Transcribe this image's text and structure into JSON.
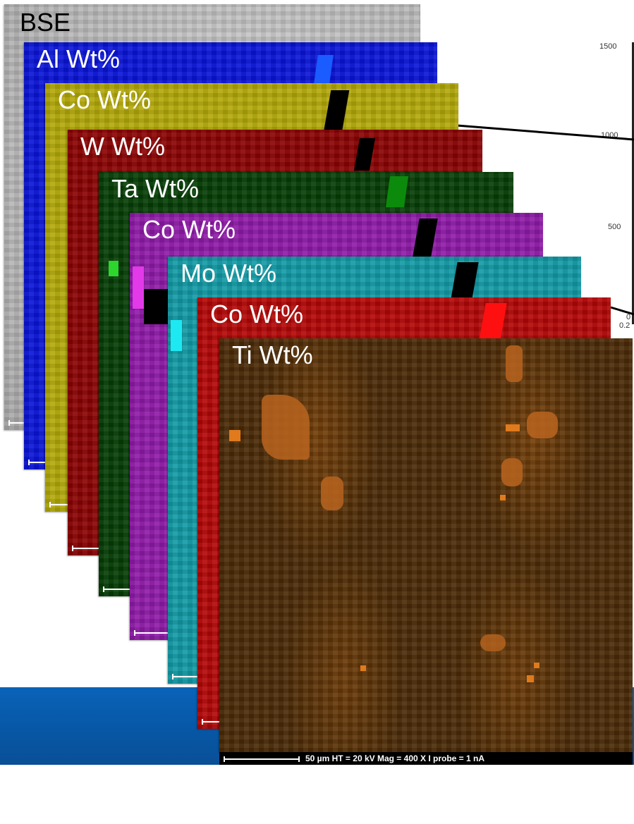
{
  "slide": {
    "background_chart_ticks": [
      "1500",
      "1000",
      "500",
      "0",
      "0.2"
    ],
    "maps": [
      {
        "label": "BSE",
        "color": "#bdbdbd"
      },
      {
        "label": "Al Wt%",
        "color": "#0a14d8"
      },
      {
        "label": "Co Wt%",
        "color": "#b3a90a"
      },
      {
        "label": "W Wt%",
        "color": "#8a0202"
      },
      {
        "label": "Ta Wt%",
        "color": "#053d05"
      },
      {
        "label": "Co Wt%",
        "color": "#8f1aa8"
      },
      {
        "label": "Mo Wt%",
        "color": "#129aa6"
      },
      {
        "label": "Co Wt%",
        "color": "#b30606"
      },
      {
        "label": "Ti Wt%",
        "color": "#4a2a06"
      }
    ],
    "caption": "50 µm   HT = 20 kV   Mag = 400 X   I probe = 1 nA",
    "colors": {
      "footer_blue": "#0757a6",
      "ti_highlight": "#e07a1c"
    }
  }
}
